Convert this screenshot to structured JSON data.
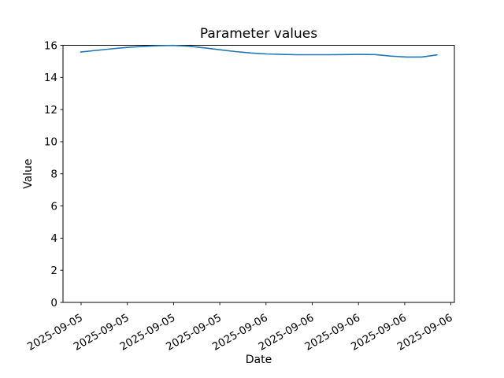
{
  "chart_data": {
    "type": "line",
    "title": "Parameter values",
    "xlabel": "Date",
    "ylabel": "Value",
    "ylim": [
      0,
      16
    ],
    "yticks": [
      0,
      2,
      4,
      6,
      8,
      10,
      12,
      14,
      16
    ],
    "ytick_labels": [
      "0",
      "2",
      "4",
      "6",
      "8",
      "10",
      "12",
      "14",
      "16"
    ],
    "xtick_labels": [
      "2025-09-05",
      "2025-09-05",
      "2025-09-05",
      "2025-09-05",
      "2025-09-06",
      "2025-09-06",
      "2025-09-06",
      "2025-09-06",
      "2025-09-06"
    ],
    "xtick_rotation_deg": 30,
    "grid": false,
    "legend": null,
    "line_color": "#1f77b4",
    "axis_color": "#000000",
    "background_color": "#ffffff",
    "series": [
      {
        "x_frac": [
          0.0449,
          0.0845,
          0.1241,
          0.1637,
          0.2033,
          0.2429,
          0.2825,
          0.3221,
          0.3617,
          0.4013,
          0.4409,
          0.4805,
          0.5201,
          0.5597,
          0.5993,
          0.6389,
          0.6785,
          0.7181,
          0.7577,
          0.7973,
          0.8369,
          0.8765,
          0.9161,
          0.9557
        ],
        "values": [
          15.58,
          15.68,
          15.78,
          15.87,
          15.93,
          15.97,
          15.99,
          15.94,
          15.84,
          15.72,
          15.61,
          15.52,
          15.46,
          15.43,
          15.41,
          15.41,
          15.41,
          15.42,
          15.43,
          15.42,
          15.33,
          15.27,
          15.27,
          15.4
        ]
      }
    ]
  }
}
